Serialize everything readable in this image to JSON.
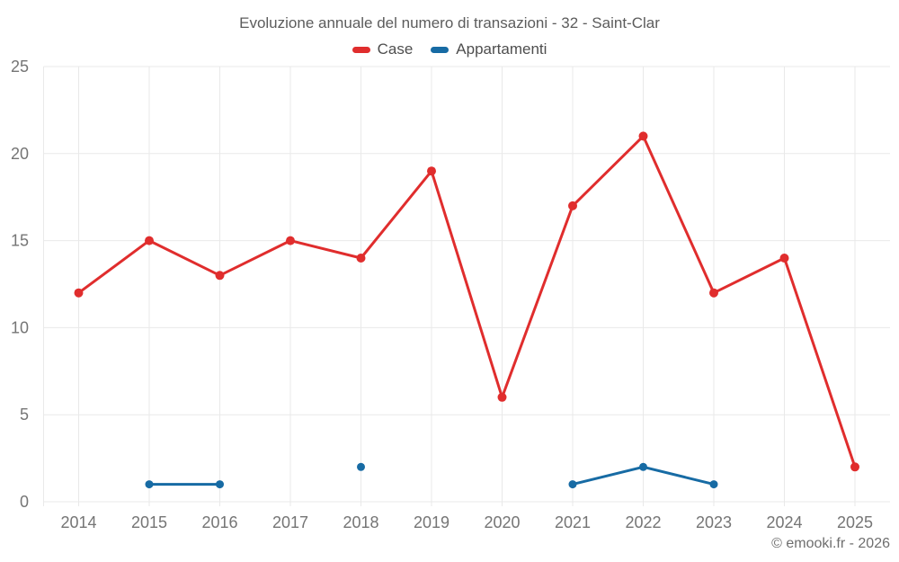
{
  "footer": {
    "credit": "© emooki.fr - 2026"
  },
  "chart_data": {
    "type": "line",
    "title": "Evoluzione annuale del numero di transazioni - 32 - Saint-Clar",
    "xlabel": "",
    "ylabel": "",
    "categories": [
      "2014",
      "2015",
      "2016",
      "2017",
      "2018",
      "2019",
      "2020",
      "2021",
      "2022",
      "2023",
      "2024",
      "2025"
    ],
    "series": [
      {
        "name": "Case",
        "color": "#e02d2d",
        "values": [
          12,
          15,
          13,
          15,
          14,
          19,
          6,
          17,
          21,
          12,
          14,
          2
        ]
      },
      {
        "name": "Appartamenti",
        "color": "#176ba4",
        "values": [
          null,
          1,
          1,
          null,
          2,
          null,
          null,
          1,
          2,
          1,
          null,
          null
        ]
      }
    ],
    "ylim": [
      0,
      25
    ],
    "yticks": [
      0,
      5,
      10,
      15,
      20,
      25
    ],
    "grid": true,
    "legend_position": "top",
    "grid_color": "#e9e9e9"
  }
}
